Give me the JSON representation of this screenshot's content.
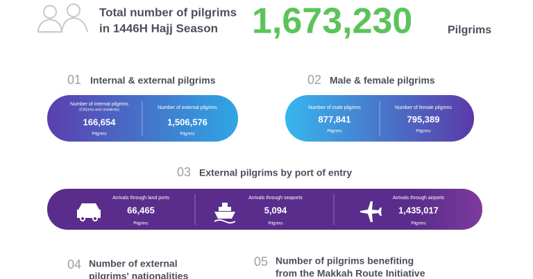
{
  "header": {
    "title_lines": [
      "Total number of pilgrims",
      "in 1446H Hajj Season"
    ],
    "total": "1,673,230",
    "unit": "Pilgrims"
  },
  "sections": [
    {
      "number": "01",
      "title": "Internal & external pilgrims",
      "items": [
        {
          "label": "Number of internal pilgrims",
          "sublabel": "(Citizens and residents)",
          "value": "166,654",
          "unit": "Pilgrims"
        },
        {
          "label": "Number of external pilgrims",
          "value": "1,506,576",
          "unit": "Pilgrims"
        }
      ]
    },
    {
      "number": "02",
      "title": "Male & female pilgrims",
      "items": [
        {
          "label": "Number of male pilgrims",
          "value": "877,841",
          "unit": "Pilgrims"
        },
        {
          "label": "Number of female pilgrims",
          "value": "795,389",
          "unit": "Pilgrims"
        }
      ]
    },
    {
      "number": "03",
      "title": "External pilgrims by port of entry",
      "items": [
        {
          "label": "Arrivals through land ports",
          "value": "66,465",
          "unit": "Pilgrims"
        },
        {
          "label": "Arrivals through seaports",
          "value": "5,094",
          "unit": "Pilgrims"
        },
        {
          "label": "Arrivals through airports",
          "value": "1,435,017",
          "unit": "Pilgrims"
        }
      ]
    },
    {
      "number": "04",
      "title_lines": [
        "Number of external",
        "pilgrims' nationalities"
      ]
    },
    {
      "number": "05",
      "title_lines": [
        "Number of pilgrims benefiting",
        "from the Makkah Route Initiative"
      ]
    }
  ]
}
